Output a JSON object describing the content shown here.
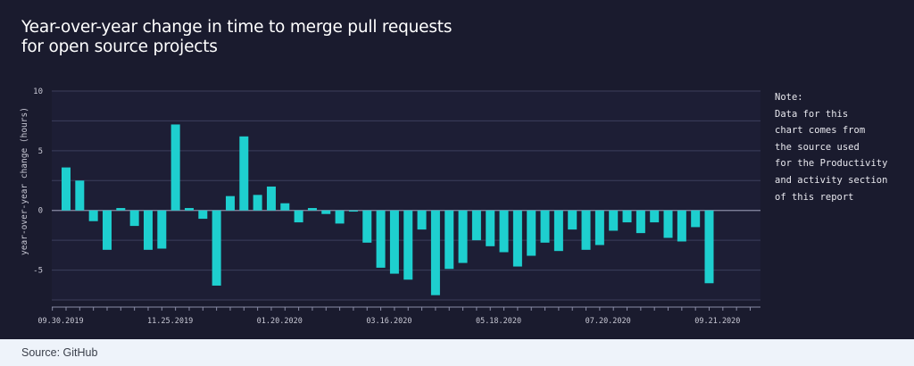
{
  "title": {
    "line1": "Year-over-year change in time to merge pull requests",
    "line2": "for open source projects"
  },
  "note": {
    "lines": [
      "Note:",
      "Data for this",
      "chart comes from",
      "the source used",
      "for the Productivity",
      "and activity section",
      "of this report"
    ]
  },
  "source": "Source: GitHub",
  "colors": {
    "background": "#1a1b2e",
    "bar": "#1ecfcf",
    "grid": "#3d3f5c",
    "footer": "#eef3fa"
  },
  "chart_data": {
    "type": "bar",
    "ylabel": "year-over-year change (hours)",
    "ylim": [
      -7.5,
      10
    ],
    "yticks": [
      10,
      5,
      0,
      -5
    ],
    "grid": true,
    "xtick_labels": [
      "09.30.2019",
      "11.25.2019",
      "01.20.2020",
      "03.16.2020",
      "05.18.2020",
      "07.20.2020",
      "09.21.2020"
    ],
    "xtick_positions": [
      0,
      8,
      16,
      24,
      32,
      40,
      48
    ],
    "values": [
      3.6,
      2.5,
      -0.9,
      -3.3,
      0.2,
      -1.3,
      -3.3,
      -3.2,
      7.2,
      0.2,
      -0.7,
      -6.3,
      1.2,
      6.2,
      1.3,
      2.0,
      0.6,
      -1.0,
      0.2,
      -0.3,
      -1.1,
      -0.1,
      -2.7,
      -4.8,
      -5.3,
      -5.8,
      -1.6,
      -7.1,
      -4.9,
      -4.4,
      -2.5,
      -3.0,
      -3.5,
      -4.7,
      -3.8,
      -2.7,
      -3.4,
      -1.6,
      -3.3,
      -2.9,
      -1.7,
      -1.0,
      -1.9,
      -1.0,
      -2.3,
      -2.6,
      -1.4,
      -6.1
    ]
  }
}
